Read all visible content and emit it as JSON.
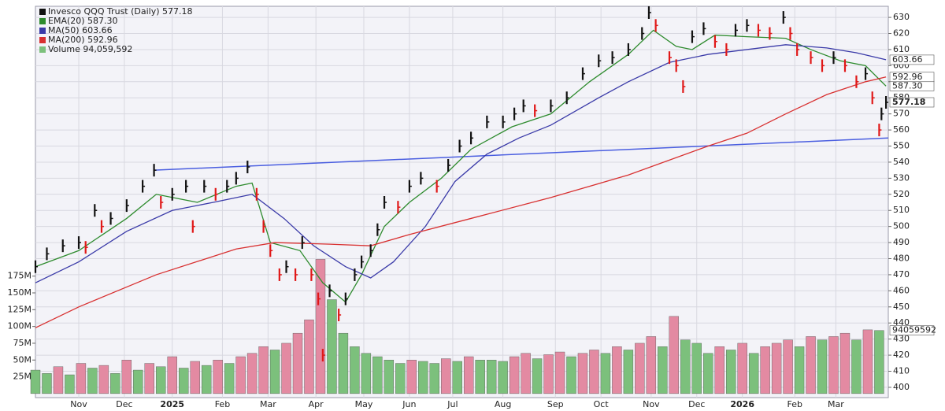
{
  "chart_data": {
    "type": "stock",
    "title": "Invesco QQQ Trust (Daily) 577.18",
    "grid": true,
    "xlim": [
      0,
      374
    ],
    "xticks": [
      {
        "value": 19,
        "label": "Nov"
      },
      {
        "value": 39,
        "label": "Dec"
      },
      {
        "value": 60,
        "label": "2025"
      },
      {
        "value": 82,
        "label": "Feb"
      },
      {
        "value": 102,
        "label": "Mar"
      },
      {
        "value": 123,
        "label": "Apr"
      },
      {
        "value": 144,
        "label": "May"
      },
      {
        "value": 164,
        "label": "Jun"
      },
      {
        "value": 183,
        "label": "Jul"
      },
      {
        "value": 205,
        "label": "Aug"
      },
      {
        "value": 228,
        "label": "Sep"
      },
      {
        "value": 248,
        "label": "Oct"
      },
      {
        "value": 270,
        "label": "Nov"
      },
      {
        "value": 290,
        "label": "Dec"
      },
      {
        "value": 310,
        "label": "2026"
      },
      {
        "value": 333,
        "label": "Feb"
      },
      {
        "value": 351,
        "label": "Mar"
      }
    ],
    "ylim": [
      393.6,
      636.9
    ],
    "yticks": [
      400,
      410,
      420,
      430,
      440,
      450,
      460,
      470,
      480,
      490,
      500,
      510,
      520,
      530,
      540,
      550,
      560,
      570,
      580,
      590,
      600,
      610,
      620,
      630
    ],
    "y2lim": [
      -6,
      577
    ],
    "y2ticks": [
      {
        "value": 25,
        "label": "25M"
      },
      {
        "value": 50,
        "label": "50M"
      },
      {
        "value": 75,
        "label": "75M"
      },
      {
        "value": 100,
        "label": "100M"
      },
      {
        "value": 125,
        "label": "125M"
      },
      {
        "value": 150,
        "label": "150M"
      },
      {
        "value": 175,
        "label": "175M"
      }
    ],
    "price": {
      "up_color": "#111111",
      "down_color": "#e01818",
      "last_label": "577.18",
      "x": [
        0,
        5,
        12,
        19,
        22,
        26,
        29,
        33,
        40,
        47,
        52,
        55,
        60,
        66,
        69,
        74,
        79,
        84,
        88,
        93,
        97,
        100,
        103,
        107,
        110,
        114,
        117,
        121,
        124,
        126,
        129,
        133,
        136,
        140,
        143,
        147,
        150,
        153,
        159,
        164,
        169,
        176,
        181,
        186,
        191,
        198,
        205,
        210,
        214,
        219,
        226,
        233,
        240,
        247,
        253,
        260,
        266,
        269,
        272,
        278,
        281,
        284,
        288,
        293,
        298,
        303,
        307,
        312,
        317,
        322,
        328,
        331,
        334,
        340,
        345,
        350,
        355,
        360,
        364,
        367,
        370,
        371,
        373
      ],
      "values": [
        475,
        483,
        488,
        490,
        487,
        510,
        500,
        505,
        513,
        525,
        535,
        515,
        520,
        525,
        500,
        525,
        520,
        525,
        530,
        537,
        520,
        500,
        485,
        470,
        475,
        470,
        490,
        470,
        455,
        420,
        460,
        445,
        455,
        470,
        478,
        485,
        498,
        515,
        512,
        525,
        530,
        525,
        538,
        550,
        555,
        565,
        565,
        570,
        575,
        572,
        575,
        580,
        595,
        603,
        605,
        610,
        620,
        633,
        625,
        605,
        600,
        587,
        618,
        623,
        615,
        610,
        622,
        625,
        622,
        620,
        630,
        620,
        610,
        605,
        600,
        605,
        600,
        590,
        595,
        580,
        560,
        570,
        577.18
      ]
    },
    "series": [
      {
        "name": "EMA(20) 587.30",
        "color": "#2e8b2e",
        "last_label": "587.30",
        "x": [
          0,
          19,
          40,
          53,
          71,
          88,
          95,
          103,
          116,
          126,
          136,
          143,
          153,
          164,
          178,
          191,
          209,
          226,
          243,
          260,
          271,
          281,
          288,
          298,
          312,
          329,
          340,
          353,
          364,
          373
        ],
        "values": [
          475,
          485,
          505,
          520,
          515,
          525,
          527,
          490,
          485,
          465,
          453,
          470,
          500,
          515,
          530,
          548,
          562,
          570,
          590,
          607,
          622,
          612,
          610,
          619,
          618,
          617,
          610,
          603,
          600,
          587.3
        ]
      },
      {
        "name": "MA(50) 603.66",
        "color": "#3a3aa8",
        "last_label": "603.66",
        "x": [
          0,
          19,
          40,
          60,
          78,
          95,
          109,
          122,
          136,
          147,
          157,
          171,
          184,
          198,
          212,
          226,
          247,
          260,
          278,
          295,
          312,
          329,
          347,
          360,
          373
        ],
        "values": [
          465,
          478,
          497,
          510,
          515,
          520,
          505,
          488,
          475,
          468,
          478,
          500,
          528,
          545,
          555,
          563,
          580,
          590,
          602,
          607,
          610,
          613,
          611,
          608,
          603.66
        ]
      },
      {
        "name": "MA(200) 592.96",
        "color": "#d83030",
        "last_label": "592.96",
        "x": [
          0,
          19,
          53,
          88,
          105,
          129,
          147,
          164,
          191,
          226,
          260,
          295,
          312,
          329,
          347,
          364,
          373
        ],
        "values": [
          437,
          450,
          470,
          486,
          490,
          489,
          488,
          495,
          505,
          518,
          532,
          550,
          558,
          570,
          582,
          590,
          592.96
        ]
      }
    ],
    "volume": {
      "name": "Volume 94,059,592",
      "axis": "y2",
      "up_color": "#7cc07c",
      "down_color": "#e38aa2",
      "last_label": "94059592",
      "x": [
        0,
        5,
        10,
        15,
        20,
        25,
        30,
        35,
        40,
        45,
        50,
        55,
        60,
        65,
        70,
        75,
        80,
        85,
        90,
        95,
        100,
        105,
        110,
        115,
        120,
        125,
        130,
        135,
        140,
        145,
        150,
        155,
        160,
        165,
        170,
        175,
        180,
        185,
        190,
        195,
        200,
        205,
        210,
        215,
        220,
        225,
        230,
        235,
        240,
        245,
        250,
        255,
        260,
        265,
        270,
        275,
        280,
        285,
        290,
        295,
        300,
        305,
        310,
        315,
        320,
        325,
        330,
        335,
        340,
        345,
        350,
        355,
        360,
        365,
        370
      ],
      "values": [
        35,
        30,
        40,
        28,
        45,
        38,
        42,
        30,
        50,
        35,
        45,
        40,
        55,
        38,
        48,
        42,
        50,
        45,
        55,
        60,
        70,
        65,
        75,
        90,
        110,
        200,
        140,
        90,
        70,
        60,
        55,
        50,
        45,
        50,
        48,
        45,
        52,
        48,
        55,
        50,
        50,
        48,
        55,
        60,
        52,
        58,
        62,
        55,
        60,
        65,
        60,
        70,
        65,
        75,
        85,
        70,
        115,
        80,
        75,
        60,
        70,
        65,
        75,
        60,
        70,
        75,
        80,
        70,
        85,
        80,
        85,
        90,
        80,
        95,
        94.059592
      ]
    },
    "trendline": {
      "color": "#4a5ee0",
      "x": [
        52,
        374
      ],
      "values": [
        535,
        555
      ]
    }
  }
}
